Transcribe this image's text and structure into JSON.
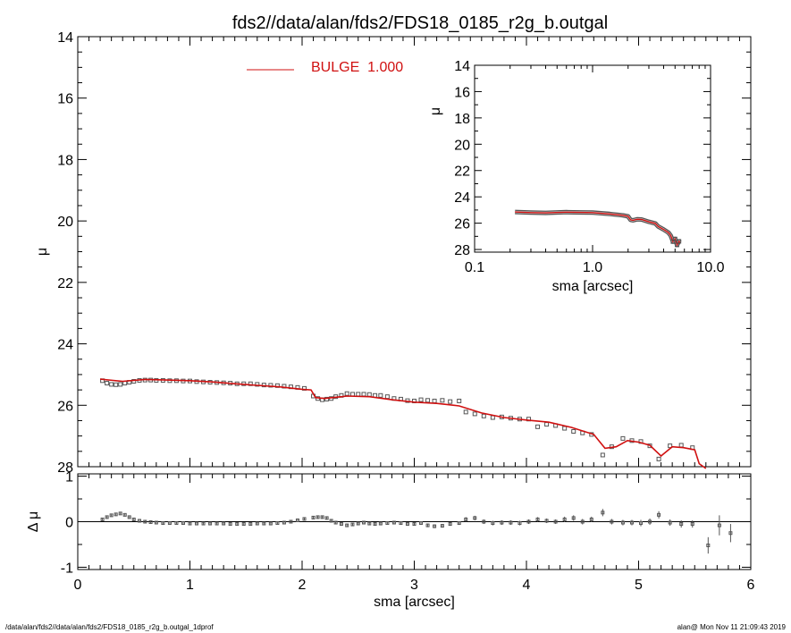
{
  "title": "fds2//data/alan/fds2/FDS18_0185_r2g_b.outgal",
  "footer": {
    "left": "/data/alan/fds2//data/alan/fds2/FDS18_0185_r2g_b.outgal_1dprof",
    "right": "alan@  Mon Nov 11 21:09:43 2019"
  },
  "colors": {
    "model": "#d01010",
    "data": "#555555",
    "axes": "#000000"
  },
  "chart_data": [
    {
      "id": "main-profile",
      "type": "scatter",
      "ylabel": "μ",
      "xlabel": "",
      "xlim": [
        0,
        6
      ],
      "ylim": [
        28,
        14
      ],
      "y_inverted": true,
      "x_ticks": [],
      "y_ticks": [
        "14",
        "16",
        "18",
        "20",
        "22",
        "24",
        "26",
        "28"
      ],
      "legend": {
        "entries": [
          {
            "label": "BULGE  1.000",
            "color": "#d01010"
          }
        ],
        "placement": "top-left"
      },
      "series": [
        {
          "name": "BULGE  1.000",
          "kind": "line",
          "x": [
            0.2,
            0.4,
            0.6,
            0.8,
            1.0,
            1.2,
            1.4,
            1.6,
            1.8,
            2.0,
            2.08,
            2.12,
            2.2,
            2.4,
            2.6,
            2.8,
            3.0,
            3.2,
            3.4,
            3.6,
            3.8,
            4.0,
            4.2,
            4.4,
            4.6,
            4.7,
            4.8,
            4.9,
            5.0,
            5.1,
            5.2,
            5.3,
            5.4,
            5.5,
            5.54,
            5.6
          ],
          "y": [
            25.15,
            25.22,
            25.16,
            25.18,
            25.2,
            25.24,
            25.3,
            25.35,
            25.4,
            25.48,
            25.5,
            25.75,
            25.78,
            25.7,
            25.72,
            25.82,
            25.9,
            25.94,
            26.02,
            26.25,
            26.4,
            26.48,
            26.55,
            26.72,
            26.95,
            27.4,
            27.35,
            27.15,
            27.2,
            27.3,
            27.65,
            27.35,
            27.38,
            27.45,
            27.9,
            28.3
          ]
        },
        {
          "name": "",
          "kind": "points",
          "x": [
            0.22,
            0.26,
            0.3,
            0.34,
            0.38,
            0.42,
            0.46,
            0.5,
            0.55,
            0.6,
            0.65,
            0.7,
            0.76,
            0.82,
            0.88,
            0.94,
            1.0,
            1.06,
            1.12,
            1.18,
            1.24,
            1.3,
            1.36,
            1.42,
            1.48,
            1.54,
            1.6,
            1.66,
            1.72,
            1.78,
            1.84,
            1.9,
            1.96,
            2.02,
            2.1,
            2.14,
            2.18,
            2.22,
            2.26,
            2.3,
            2.35,
            2.4,
            2.45,
            2.5,
            2.55,
            2.6,
            2.65,
            2.7,
            2.76,
            2.82,
            2.88,
            2.94,
            3.0,
            3.06,
            3.12,
            3.18,
            3.25,
            3.32,
            3.4,
            3.46,
            3.54,
            3.62,
            3.7,
            3.78,
            3.86,
            3.94,
            4.02,
            4.1,
            4.18,
            4.26,
            4.34,
            4.42,
            4.5,
            4.58,
            4.68,
            4.76,
            4.86,
            4.94,
            5.02,
            5.1,
            5.18,
            5.28,
            5.38,
            5.48
          ],
          "y": [
            25.2,
            25.28,
            25.32,
            25.33,
            25.32,
            25.28,
            25.25,
            25.22,
            25.19,
            25.18,
            25.18,
            25.19,
            25.19,
            25.2,
            25.2,
            25.21,
            25.21,
            25.23,
            25.24,
            25.25,
            25.26,
            25.27,
            25.28,
            25.3,
            25.3,
            25.3,
            25.32,
            25.34,
            25.35,
            25.36,
            25.38,
            25.4,
            25.42,
            25.45,
            25.7,
            25.78,
            25.82,
            25.8,
            25.78,
            25.72,
            25.68,
            25.62,
            25.64,
            25.64,
            25.64,
            25.65,
            25.68,
            25.68,
            25.72,
            25.78,
            25.8,
            25.85,
            25.86,
            25.82,
            25.84,
            25.86,
            25.84,
            25.88,
            25.86,
            26.22,
            26.28,
            26.35,
            26.4,
            26.38,
            26.42,
            26.45,
            26.45,
            26.7,
            26.62,
            26.66,
            26.75,
            26.85,
            26.9,
            26.95,
            27.62,
            27.35,
            27.08,
            27.15,
            27.18,
            27.32,
            27.75,
            27.32,
            27.3,
            27.38
          ]
        }
      ]
    },
    {
      "id": "residuals",
      "type": "scatter",
      "ylabel": "Δ μ",
      "xlabel": "sma [arcsec]",
      "xlim": [
        0,
        6
      ],
      "ylim": [
        -1.05,
        1.05
      ],
      "x_ticks": [
        "0",
        "1",
        "2",
        "3",
        "4",
        "5",
        "6"
      ],
      "y_ticks": [
        "-1",
        "0",
        "1"
      ],
      "series": [
        {
          "name": "",
          "kind": "points-errorbars",
          "x": [
            0.22,
            0.26,
            0.3,
            0.34,
            0.38,
            0.42,
            0.46,
            0.5,
            0.55,
            0.6,
            0.65,
            0.7,
            0.76,
            0.82,
            0.88,
            0.94,
            1.0,
            1.06,
            1.12,
            1.18,
            1.24,
            1.3,
            1.36,
            1.42,
            1.48,
            1.54,
            1.6,
            1.66,
            1.72,
            1.78,
            1.84,
            1.9,
            1.96,
            2.02,
            2.1,
            2.14,
            2.18,
            2.22,
            2.26,
            2.3,
            2.35,
            2.4,
            2.45,
            2.5,
            2.55,
            2.6,
            2.65,
            2.7,
            2.76,
            2.82,
            2.88,
            2.94,
            3.0,
            3.06,
            3.12,
            3.18,
            3.25,
            3.32,
            3.4,
            3.46,
            3.54,
            3.62,
            3.7,
            3.78,
            3.86,
            3.94,
            4.02,
            4.1,
            4.18,
            4.26,
            4.34,
            4.42,
            4.5,
            4.58,
            4.68,
            4.76,
            4.86,
            4.94,
            5.02,
            5.1,
            5.18,
            5.28,
            5.38,
            5.48,
            5.62,
            5.72,
            5.82
          ],
          "y": [
            0.05,
            0.1,
            0.14,
            0.16,
            0.18,
            0.15,
            0.1,
            0.05,
            0.02,
            0.0,
            -0.01,
            -0.02,
            -0.03,
            -0.03,
            -0.03,
            -0.03,
            -0.04,
            -0.04,
            -0.04,
            -0.04,
            -0.04,
            -0.04,
            -0.05,
            -0.05,
            -0.05,
            -0.05,
            -0.04,
            -0.04,
            -0.04,
            -0.03,
            -0.02,
            0.0,
            0.03,
            0.06,
            0.09,
            0.1,
            0.1,
            0.08,
            0.02,
            -0.02,
            -0.05,
            -0.08,
            -0.06,
            -0.04,
            -0.02,
            -0.04,
            -0.05,
            -0.04,
            -0.03,
            -0.02,
            -0.03,
            -0.05,
            -0.05,
            -0.03,
            -0.08,
            -0.1,
            -0.09,
            -0.05,
            -0.03,
            0.05,
            0.08,
            0.0,
            -0.03,
            -0.02,
            -0.02,
            -0.03,
            0.0,
            0.05,
            0.02,
            0.0,
            0.05,
            0.08,
            0.0,
            0.05,
            0.2,
            0.0,
            -0.02,
            -0.02,
            -0.03,
            0.0,
            0.15,
            -0.02,
            -0.05,
            -0.05,
            -0.52,
            -0.08,
            -0.25
          ],
          "err": [
            0.02,
            0.02,
            0.02,
            0.02,
            0.02,
            0.02,
            0.02,
            0.02,
            0.02,
            0.02,
            0.02,
            0.02,
            0.02,
            0.02,
            0.02,
            0.02,
            0.02,
            0.02,
            0.02,
            0.02,
            0.02,
            0.02,
            0.02,
            0.02,
            0.02,
            0.02,
            0.02,
            0.02,
            0.02,
            0.02,
            0.02,
            0.02,
            0.03,
            0.03,
            0.03,
            0.03,
            0.03,
            0.03,
            0.03,
            0.03,
            0.03,
            0.03,
            0.03,
            0.03,
            0.03,
            0.03,
            0.03,
            0.03,
            0.03,
            0.03,
            0.03,
            0.03,
            0.03,
            0.03,
            0.04,
            0.04,
            0.04,
            0.04,
            0.04,
            0.05,
            0.05,
            0.05,
            0.05,
            0.05,
            0.05,
            0.05,
            0.05,
            0.05,
            0.05,
            0.05,
            0.06,
            0.06,
            0.06,
            0.06,
            0.08,
            0.06,
            0.06,
            0.06,
            0.07,
            0.07,
            0.08,
            0.07,
            0.08,
            0.08,
            0.18,
            0.22,
            0.2
          ]
        }
      ],
      "reference_line": 0
    },
    {
      "id": "inset-log-profile",
      "type": "line",
      "ylabel": "μ",
      "xlabel": "sma [arcsec]",
      "x_scale": "log",
      "xlim": [
        0.1,
        10
      ],
      "ylim": [
        28.2,
        14
      ],
      "y_inverted": true,
      "x_ticks": [
        "0.1",
        "1.0",
        "10.0"
      ],
      "y_ticks": [
        "14",
        "16",
        "18",
        "20",
        "22",
        "24",
        "26",
        "28"
      ],
      "series": [
        {
          "name": "",
          "kind": "line",
          "x": [
            0.22,
            0.3,
            0.4,
            0.6,
            0.8,
            1.0,
            1.4,
            1.8,
            2.0,
            2.1,
            2.2,
            2.4,
            2.6,
            3.0,
            3.4,
            3.6,
            4.0,
            4.4,
            4.6,
            4.8,
            5.0,
            5.2,
            5.4,
            5.5
          ],
          "y": [
            25.15,
            25.2,
            25.22,
            25.16,
            25.18,
            25.2,
            25.3,
            25.4,
            25.48,
            25.75,
            25.78,
            25.7,
            25.72,
            25.9,
            26.02,
            26.25,
            26.48,
            26.72,
            26.95,
            27.4,
            27.2,
            27.65,
            27.38,
            27.45
          ]
        }
      ]
    }
  ]
}
